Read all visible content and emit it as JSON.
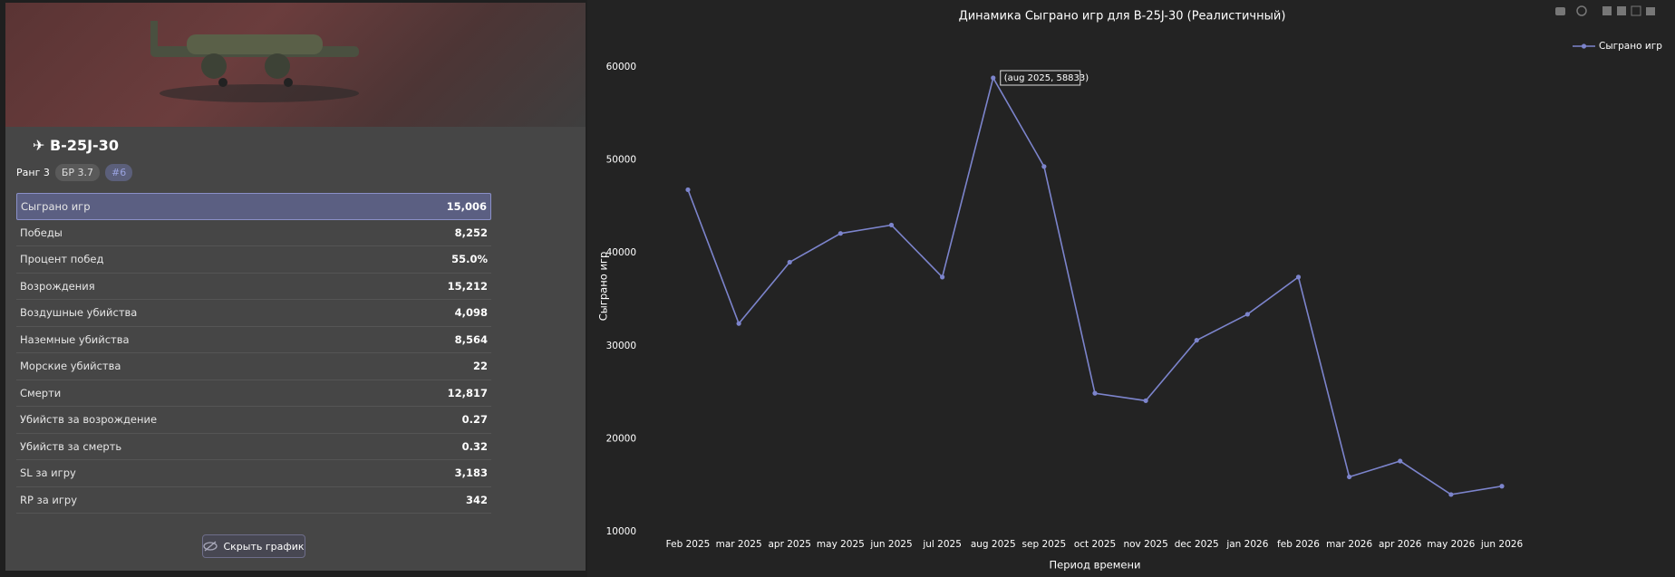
{
  "vehicle": {
    "name": "B-25J-30",
    "rank": "Ранг 3",
    "br": "БР 3.7",
    "position": "#6"
  },
  "stats": {
    "rows": [
      [
        "Сыграно игр",
        "15,006"
      ],
      [
        "Победы",
        "8,252"
      ],
      [
        "Процент побед",
        "55.0%"
      ],
      [
        "Возрождения",
        "15,212"
      ],
      [
        "Воздушные убийства",
        "4,098"
      ],
      [
        "Наземные убийства",
        "8,564"
      ],
      [
        "Морские убийства",
        "22"
      ],
      [
        "Смерти",
        "12,817"
      ],
      [
        "Убийств за возрождение",
        "0.27"
      ],
      [
        "Убийств за смерть",
        "0.32"
      ],
      [
        "SL за игру",
        "3,183"
      ],
      [
        "RP за игру",
        "342"
      ]
    ]
  },
  "button": "Скрыть график",
  "chart_data": {
    "type": "line",
    "title": "Динамика Сыграно игр для B-25J-30 (Реалистичный)",
    "x_label": "Период времени",
    "y_label": "Сыграно игр",
    "categories": [
      "Feb 2025",
      "mar 2025",
      "apr 2025",
      "may 2025",
      "jun 2025",
      "jul 2025",
      "aug 2025",
      "sep 2025",
      "oct 2025",
      "nov 2025",
      "dec 2025",
      "jan 2026",
      "feb 2026",
      "mar 2026",
      "apr 2026",
      "may 2026",
      "jun 2026"
    ],
    "series": [
      {
        "name": "Сыграно игр",
        "color": "#7c84cc",
        "values": [
          46800,
          32400,
          39000,
          42100,
          43000,
          37400,
          58833,
          49300,
          24900,
          24100,
          30600,
          33400,
          37400,
          15900,
          17600,
          14000,
          14900
        ]
      }
    ],
    "ylim": [
      10000,
      62000
    ],
    "yticks": [
      10000,
      20000,
      30000,
      40000,
      50000,
      60000
    ],
    "annotation": "(aug 2025, 58833)",
    "legend": "top-right",
    "grid": false
  }
}
